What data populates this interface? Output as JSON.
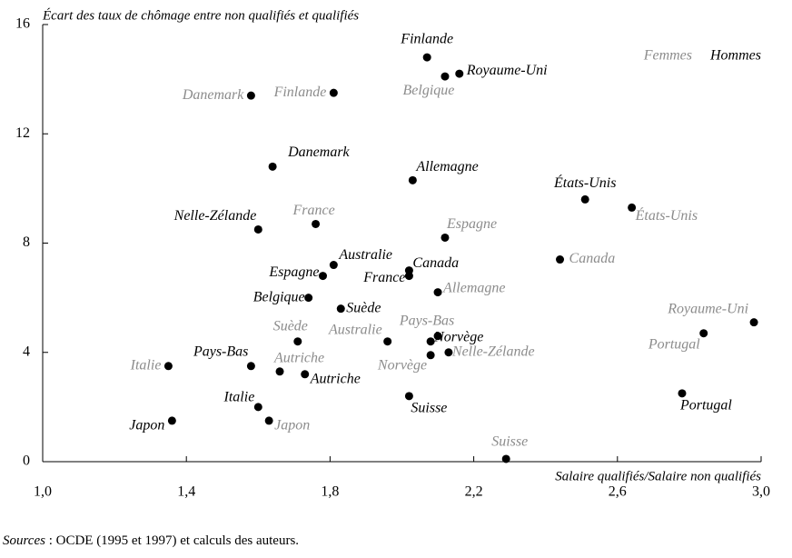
{
  "chart_data": {
    "type": "scatter",
    "ylabel": "Écart des taux de chômage entre non qualifiés et qualifiés",
    "xlabel": "Salaire qualifiés/Salaire non qualifiés",
    "xlim": [
      1.0,
      3.0
    ],
    "xticks": [
      {
        "value": 1.0,
        "label": "1,0"
      },
      {
        "value": 1.4,
        "label": "1,4"
      },
      {
        "value": 1.8,
        "label": "1,8"
      },
      {
        "value": 2.2,
        "label": "2,2"
      },
      {
        "value": 2.6,
        "label": "2,6"
      },
      {
        "value": 3.0,
        "label": "3,0"
      }
    ],
    "ylim": [
      0,
      16
    ],
    "yticks": [
      0,
      4,
      8,
      12,
      16
    ],
    "legend": "top-right",
    "series": [
      {
        "name": "Femmes",
        "color": "#8c8c8c",
        "labels": [
          "Danemark",
          "Finlande",
          "Belgique",
          "France",
          "Espagne",
          "États-Unis",
          "Canada",
          "Allemagne",
          "Pays-Bas",
          "Suède",
          "Australie",
          "Norvège",
          "Nelle-Zélande",
          "Autriche",
          "Italie",
          "Japon",
          "Royaume-Uni",
          "Portugal",
          "Suisse"
        ],
        "x": [
          1.58,
          1.81,
          2.12,
          1.76,
          2.12,
          2.64,
          2.44,
          2.1,
          2.1,
          1.71,
          1.96,
          2.08,
          2.13,
          1.66,
          1.35,
          1.63,
          2.98,
          2.84,
          2.29
        ],
        "values": [
          13.4,
          13.5,
          14.1,
          8.7,
          8.2,
          9.3,
          7.4,
          6.2,
          4.6,
          4.4,
          4.4,
          3.9,
          4.0,
          3.3,
          3.5,
          1.5,
          5.1,
          4.7,
          0.1
        ]
      },
      {
        "name": "Hommes",
        "color": "#000000",
        "labels": [
          "Finlande",
          "Royaume-Uni",
          "Danemark",
          "Allemagne",
          "États-Unis",
          "Nelle-Zélande",
          "Australie",
          "Canada",
          "Espagne",
          "France",
          "Belgique",
          "Suède",
          "Norvège",
          "Pays-Bas",
          "Autriche",
          "Italie",
          "Suisse",
          "Portugal",
          "Japon"
        ],
        "x": [
          2.07,
          2.16,
          1.64,
          2.03,
          2.51,
          1.6,
          1.81,
          2.02,
          1.78,
          2.02,
          1.74,
          1.83,
          2.08,
          1.58,
          1.73,
          1.6,
          2.02,
          2.78,
          1.36
        ],
        "values": [
          14.8,
          14.2,
          10.8,
          10.3,
          9.6,
          8.5,
          7.2,
          7.0,
          6.8,
          6.8,
          6.0,
          5.6,
          4.4,
          3.5,
          3.2,
          2.0,
          2.4,
          2.5,
          1.5
        ]
      }
    ],
    "source": {
      "label": "Sources",
      "text": " : OCDE (1995 et 1997) et calculs des auteurs."
    }
  }
}
